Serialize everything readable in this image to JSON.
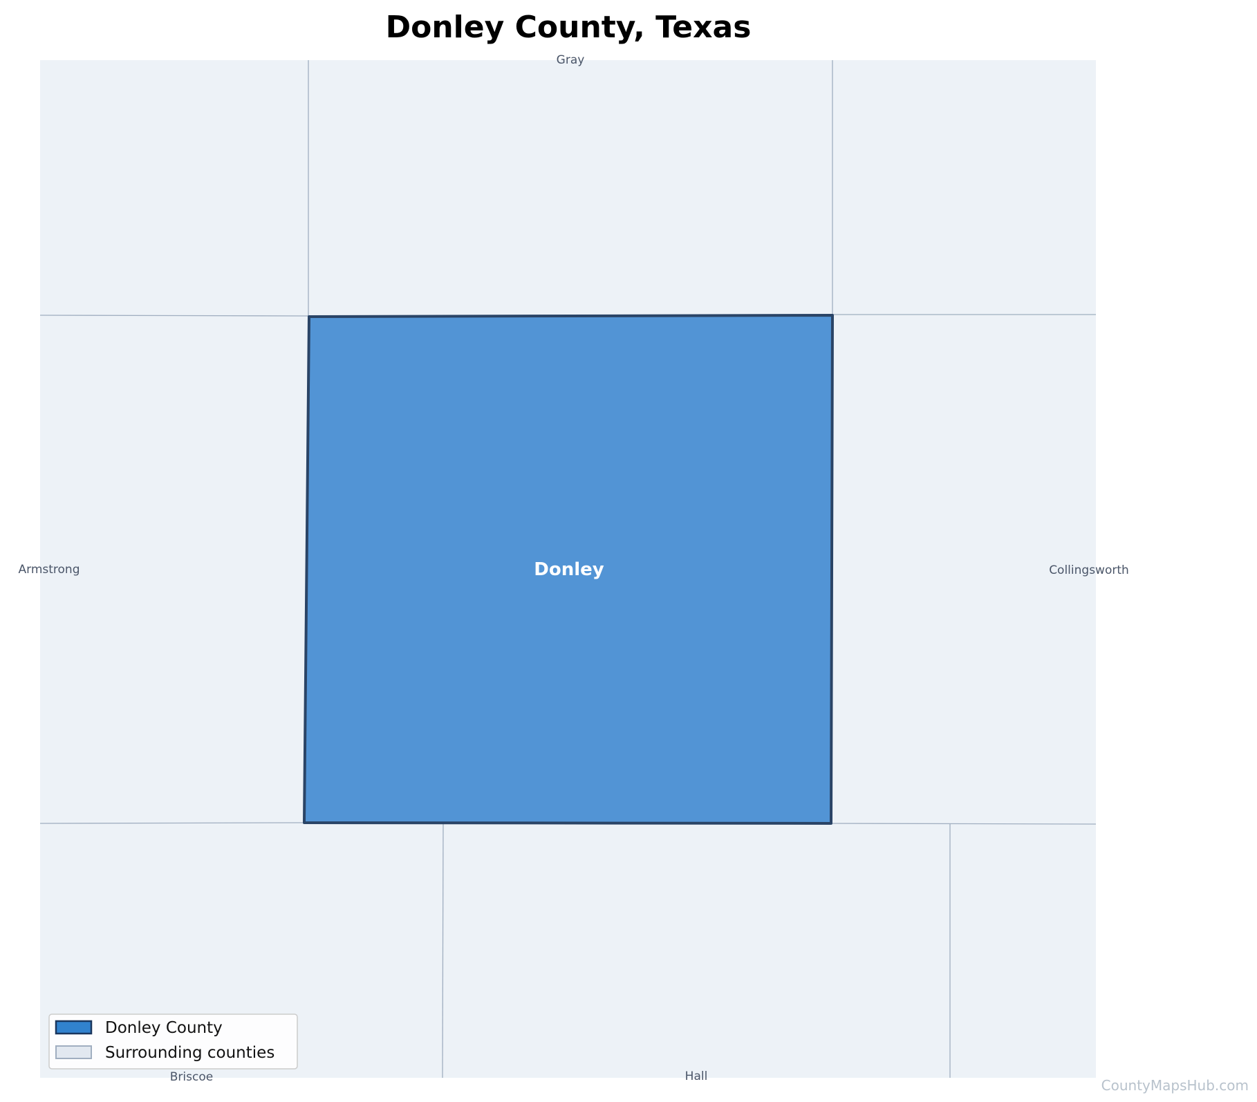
{
  "title": "Donley County, Texas",
  "featured_county": {
    "name": "Donley",
    "fill": "#5294d5",
    "stroke": "#2a4466"
  },
  "neighbors": [
    {
      "id": "gray",
      "name": "Gray"
    },
    {
      "id": "armstrong",
      "name": "Armstrong"
    },
    {
      "id": "collingsworth",
      "name": "Collingsworth"
    },
    {
      "id": "briscoe",
      "name": "Briscoe"
    },
    {
      "id": "hall",
      "name": "Hall"
    }
  ],
  "colors": {
    "surrounding_fill": "#edf2f7",
    "border": "#a0aec0",
    "legend_featured_fill": "#3182ce",
    "legend_featured_stroke": "#1a365d"
  },
  "legend": {
    "items": [
      {
        "label": "Donley County"
      },
      {
        "label": "Surrounding counties"
      }
    ]
  },
  "attribution": "CountyMapsHub.com"
}
